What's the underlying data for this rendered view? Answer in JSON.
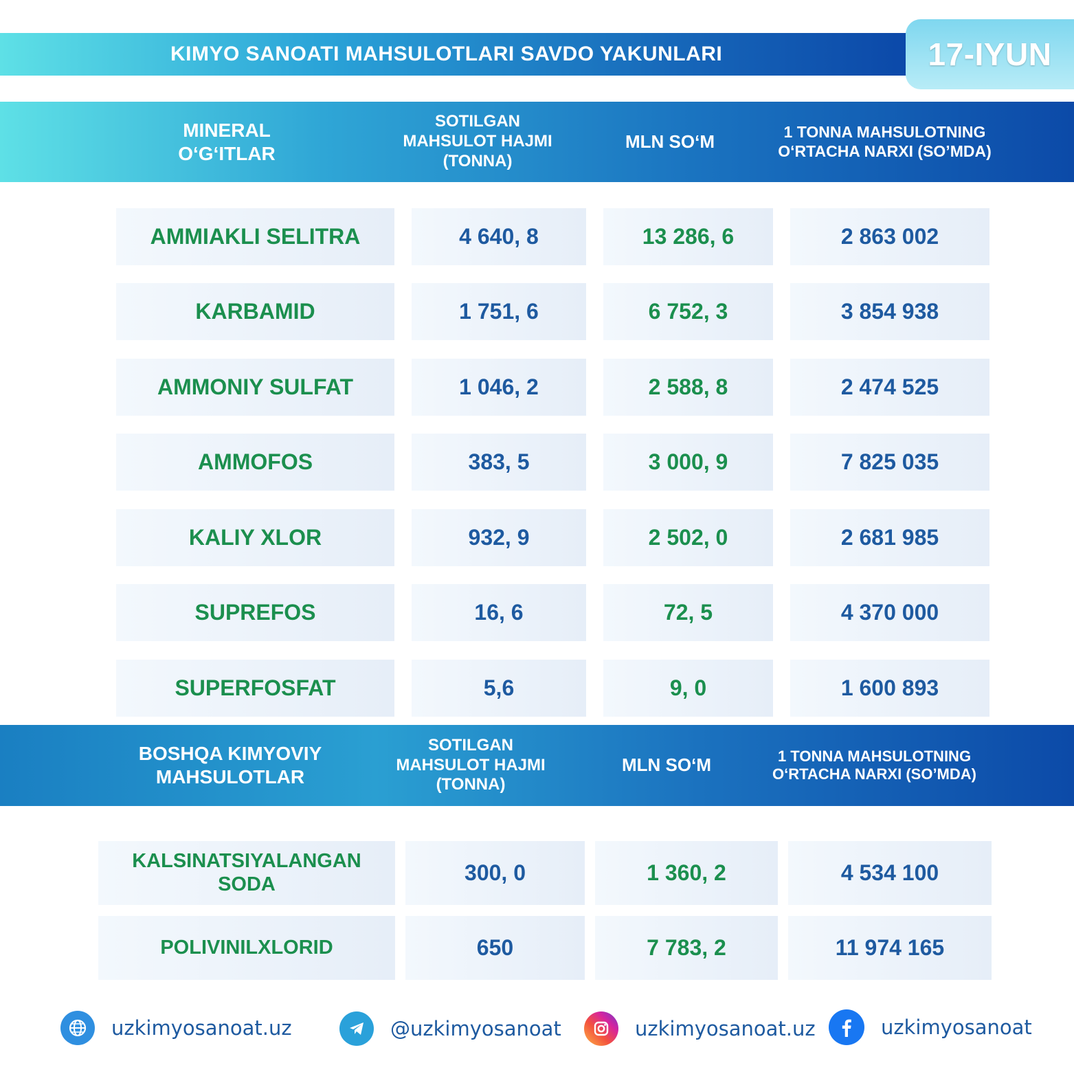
{
  "header": {
    "title": "KIMYO SANOATI MAHSULOTLARI SAVDO YAKUNLARI",
    "date": "17-IYUN"
  },
  "mineral": {
    "columns": [
      "MINERAL O‘G‘ITLAR",
      "SOTILGAN MAHSULOT HAJMI (TONNA)",
      "MLN SO‘M",
      "1 TONNA MAHSULOTNING O‘RTACHA NARXI (SO’MDA)"
    ],
    "rows": [
      {
        "name": "AMMIAKLI SELITRA",
        "volume": "4 640, 8",
        "mln": "13 286, 6",
        "price": "2 863 002"
      },
      {
        "name": "KARBAMID",
        "volume": "1 751, 6",
        "mln": "6 752, 3",
        "price": "3 854 938"
      },
      {
        "name": "AMMONIY SULFAT",
        "volume": "1 046, 2",
        "mln": "2 588, 8",
        "price": "2 474 525"
      },
      {
        "name": "AMMOFOS",
        "volume": "383, 5",
        "mln": "3 000, 9",
        "price": "7 825 035"
      },
      {
        "name": "KALIY XLOR",
        "volume": "932, 9",
        "mln": "2 502, 0",
        "price": "2 681 985"
      },
      {
        "name": "SUPREFOS",
        "volume": "16, 6",
        "mln": "72, 5",
        "price": "4 370 000"
      },
      {
        "name": "SUPERFOSFAT",
        "volume": "5,6",
        "mln": "9, 0",
        "price": "1 600 893"
      }
    ]
  },
  "other": {
    "columns": [
      "BOSHQA KIMYOVIY MAHSULOTLAR",
      "SOTILGAN MAHSULOT HAJMI (TONNA)",
      "MLN SO‘M",
      "1 TONNA MAHSULOTNING O‘RTACHA NARXI (SO’MDA)"
    ],
    "rows": [
      {
        "name": "KALSINATSIYALANGAN SODA",
        "volume": "300, 0",
        "mln": "1 360, 2",
        "price": "4 534 100"
      },
      {
        "name": "POLIVINILXLORID",
        "volume": "650",
        "mln": "7 783, 2",
        "price": "11 974 165"
      }
    ]
  },
  "footer": [
    {
      "icon": "globe-icon",
      "text": "uzkimyosanoat.uz",
      "color": "#2f8fe0"
    },
    {
      "icon": "telegram-icon",
      "text": "@uzkimyosanoat",
      "color": "#2aa1da"
    },
    {
      "icon": "instagram-icon",
      "text": "uzkimyosanoat.uz",
      "color": "#d6249f"
    },
    {
      "icon": "facebook-icon",
      "text": "uzkimyosanoat",
      "color": "#1877f2"
    }
  ]
}
